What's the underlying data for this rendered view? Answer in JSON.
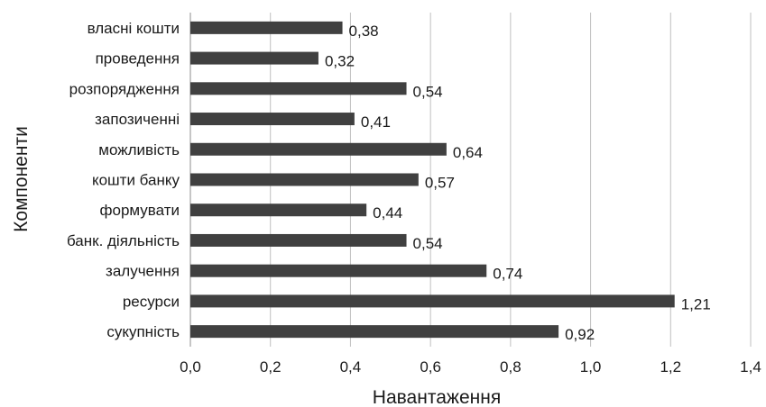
{
  "chart_data": {
    "type": "bar",
    "orientation": "horizontal",
    "xlabel": "Навантаження",
    "ylabel": "Компоненти",
    "categories": [
      "власні кошти",
      "проведення",
      "розпорядження",
      "запозиченні",
      "можливість",
      "кошти банку",
      "формувати",
      "банк. діяльність",
      "залучення",
      "ресурси",
      "сукупність"
    ],
    "values": [
      0.38,
      0.32,
      0.54,
      0.41,
      0.64,
      0.57,
      0.44,
      0.54,
      0.74,
      1.21,
      0.92
    ],
    "value_labels": [
      "0,38",
      "0,32",
      "0,54",
      "0,41",
      "0,64",
      "0,57",
      "0,44",
      "0,54",
      "0,74",
      "1,21",
      "0,92"
    ],
    "xlim": [
      0,
      1.4
    ],
    "xticks": [
      0,
      0.2,
      0.4,
      0.6,
      0.8,
      1.0,
      1.2,
      1.4
    ],
    "xtick_labels": [
      "0,0",
      "0,2",
      "0,4",
      "0,6",
      "0,8",
      "1,0",
      "1,2",
      "1,4"
    ],
    "grid": "vertical",
    "bar_color": "#404040",
    "grid_color": "#bfbfbf"
  }
}
